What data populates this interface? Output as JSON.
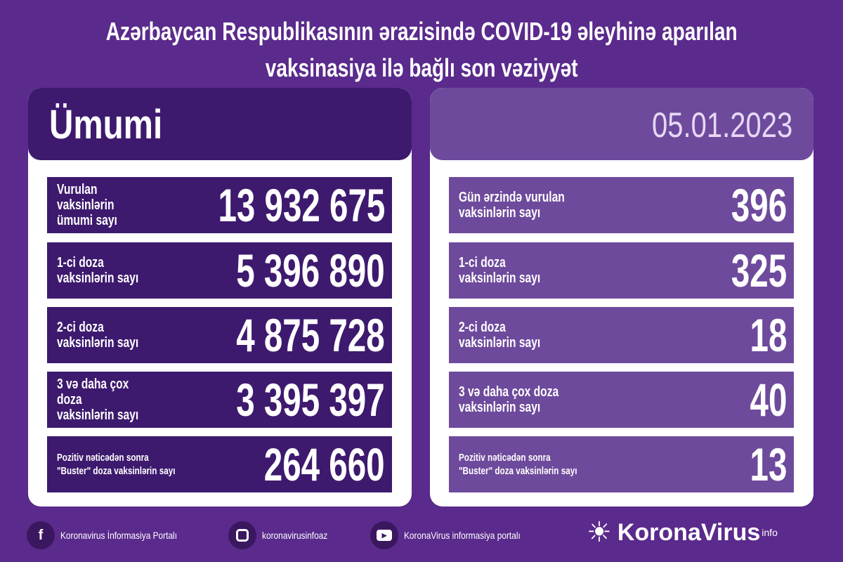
{
  "title": {
    "line1": "Azərbaycan Respublikasının ərazisində COVID-19 əleyhinə aparılan",
    "line2": "vaksinasiya ilə bağlı son vəziyyət"
  },
  "left": {
    "header": "Ümumi",
    "rows": [
      {
        "label": "Vurulan vaksinlərin\nümumi sayı",
        "value": "13 932 675"
      },
      {
        "label": "1-ci doza\nvaksinlərin sayı",
        "value": "5 396 890"
      },
      {
        "label": "2-ci doza\nvaksinlərin sayı",
        "value": "4 875 728"
      },
      {
        "label": "3 və daha çox doza\nvaksinlərin sayı",
        "value": "3 395 397"
      },
      {
        "label": "Pozitiv nəticədən sonra\n\"Buster\" doza vaksinlərin sayı",
        "value": "264 660"
      }
    ]
  },
  "right": {
    "header": "05.01.2023",
    "rows": [
      {
        "label": "Gün ərzində vurulan\nvaksinlərin sayı",
        "value": "396"
      },
      {
        "label": "1-ci doza\nvaksinlərin sayı",
        "value": "325"
      },
      {
        "label": "2-ci doza\nvaksinlərin sayı",
        "value": "18"
      },
      {
        "label": "3 və daha çox doza\nvaksinlərin sayı",
        "value": "40"
      },
      {
        "label": "Pozitiv nəticədən sonra\n\"Buster\" doza vaksinlərin sayı",
        "value": "13"
      }
    ]
  },
  "footer": {
    "facebook": "Koronavirus İnformasiya Portalı",
    "instagram": "koronavirusinfoaz",
    "youtube": "KoronaVirus informasiya portalı",
    "logo": "KoronaVirus",
    "logo_sup": "info"
  },
  "colors": {
    "background": "#5a2a8c",
    "left_rows": "#3d1a6e",
    "right_rows": "#6e4a9c"
  }
}
